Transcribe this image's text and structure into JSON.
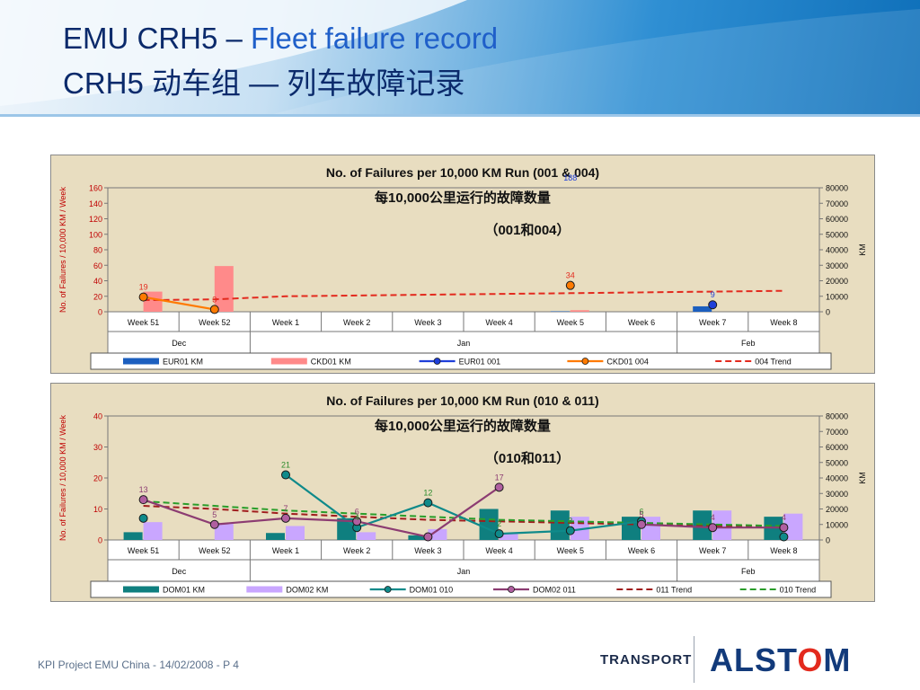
{
  "header": {
    "title_main": "EMU CRH5 –",
    "title_accent": "Fleet failure record",
    "title_cn": "CRH5 动车组 — 列车故障记录"
  },
  "colors": {
    "header_blue": "#0e6fb9",
    "title_dark": "#0b2a6b",
    "title_accent": "#1f5fc9",
    "panel_bg": "#e8ddc0",
    "alstom_blue": "#123a7a",
    "alstom_red": "#e32a1e"
  },
  "chart_data": [
    {
      "type": "bar",
      "title": "No. of Failures per 10,000 KM Run (001 & 004)",
      "subtitle_cn": "每10,000公里运行的故障数量",
      "subtitle_cn2": "（001和004）",
      "ylabel": "No. of Failures / 10,000 KM / Week",
      "y2label": "KM",
      "ylim": [
        0,
        160
      ],
      "yticks": [
        0,
        20,
        40,
        60,
        80,
        100,
        120,
        140,
        160
      ],
      "y2lim": [
        0,
        80000
      ],
      "y2ticks": [
        0,
        10000,
        20000,
        30000,
        40000,
        50000,
        60000,
        70000,
        80000
      ],
      "categories": [
        "Week 51",
        "Week 52",
        "Week 1",
        "Week 2",
        "Week 3",
        "Week 4",
        "Week 5",
        "Week 6",
        "Week 7",
        "Week 8"
      ],
      "months": [
        {
          "label": "Dec",
          "start": 0,
          "end": 2
        },
        {
          "label": "Jan",
          "start": 2,
          "end": 8
        },
        {
          "label": "Feb",
          "start": 8,
          "end": 10
        }
      ],
      "grid": false,
      "legend_position": "bottom",
      "bars": [
        {
          "name": "EUR01 KM",
          "color": "#1c5fbf",
          "values": [
            0,
            0,
            0,
            0,
            0,
            0,
            300,
            0,
            3500,
            0
          ]
        },
        {
          "name": "CKD01 KM",
          "color": "#ff8a8a",
          "values": [
            13000,
            29500,
            0,
            0,
            0,
            0,
            1000,
            0,
            0,
            0
          ]
        }
      ],
      "lines": [
        {
          "name": "EUR01 001",
          "color": "#1f3fd9",
          "marker": "#1f3fd9",
          "values": [
            null,
            null,
            null,
            null,
            null,
            null,
            188,
            null,
            9,
            null
          ]
        },
        {
          "name": "CKD01 004",
          "color": "#ff7a00",
          "marker": "#ff7a00",
          "values": [
            19,
            3,
            null,
            null,
            null,
            null,
            34,
            null,
            null,
            null
          ]
        }
      ],
      "trends": [
        {
          "name": "004 Trend",
          "color": "#e32a1e",
          "values": [
            15,
            16,
            20,
            21,
            22,
            23,
            24,
            25,
            26,
            27
          ]
        }
      ],
      "data_labels": [
        {
          "x": 0,
          "series": "CKD01 004",
          "text": "19",
          "color": "#e32a1e"
        },
        {
          "x": 1,
          "series": "CKD01 004",
          "text": "3",
          "color": "#e32a1e"
        },
        {
          "x": 6,
          "series": "CKD01 004",
          "text": "34",
          "color": "#e32a1e"
        },
        {
          "x": 6,
          "series": "EUR01 001",
          "text": "188",
          "color": "#1f3fd9"
        },
        {
          "x": 8,
          "series": "EUR01 001",
          "text": "9",
          "color": "#1f3fd9"
        }
      ]
    },
    {
      "type": "bar",
      "title": "No. of Failures per 10,000 KM Run (010 & 011)",
      "subtitle_cn": "每10,000公里运行的故障数量",
      "subtitle_cn2": "（010和011）",
      "ylabel": "No. of Failures / 10,000 KM / Week",
      "y2label": "KM",
      "ylim": [
        0,
        40
      ],
      "yticks": [
        0,
        10,
        20,
        30,
        40
      ],
      "y2lim": [
        0,
        80000
      ],
      "y2ticks": [
        0,
        10000,
        20000,
        30000,
        40000,
        50000,
        60000,
        70000,
        80000
      ],
      "categories": [
        "Week 51",
        "Week 52",
        "Week 1",
        "Week 2",
        "Week 3",
        "Week 4",
        "Week 5",
        "Week 6",
        "Week 7",
        "Week 8"
      ],
      "months": [
        {
          "label": "Dec",
          "start": 0,
          "end": 2
        },
        {
          "label": "Jan",
          "start": 2,
          "end": 8
        },
        {
          "label": "Feb",
          "start": 8,
          "end": 10
        }
      ],
      "grid": false,
      "legend_position": "bottom",
      "bars": [
        {
          "name": "DOM01 KM",
          "color": "#0f7f7f",
          "values": [
            5000,
            0,
            4500,
            14000,
            3000,
            20000,
            19000,
            15000,
            19000,
            15000
          ]
        },
        {
          "name": "DOM02 KM",
          "color": "#c9a6ff",
          "values": [
            11500,
            11000,
            9000,
            5000,
            7000,
            4000,
            15000,
            15000,
            19000,
            17000
          ]
        }
      ],
      "lines": [
        {
          "name": "DOM01 010",
          "color": "#0f8a8a",
          "marker": "#0f8a8a",
          "values": [
            7,
            null,
            21,
            4,
            12,
            2,
            3,
            6,
            null,
            1
          ]
        },
        {
          "name": "DOM02 011",
          "color": "#8c3c72",
          "marker": "#b05fa0",
          "values": [
            13,
            5,
            7,
            6,
            1,
            17,
            null,
            5,
            4,
            4
          ]
        }
      ],
      "trends": [
        {
          "name": "011 Trend",
          "color": "#a01d1d",
          "values": [
            11,
            10,
            8.5,
            7.5,
            6.5,
            6,
            5.5,
            5,
            4.5,
            4
          ]
        },
        {
          "name": "010 Trend",
          "color": "#2a9d2a",
          "values": [
            12.5,
            11,
            9.5,
            8.5,
            7.5,
            6.5,
            6,
            5.5,
            5,
            4.5
          ]
        }
      ],
      "data_labels": [
        {
          "x": 0,
          "series": "DOM02 011",
          "text": "13",
          "color": "#8c3c72"
        },
        {
          "x": 1,
          "series": "DOM02 011",
          "text": "5",
          "color": "#8c3c72"
        },
        {
          "x": 2,
          "series": "DOM01 010",
          "text": "21",
          "color": "#2a8a2a"
        },
        {
          "x": 2,
          "series": "DOM02 011",
          "text": "7",
          "color": "#8c3c72"
        },
        {
          "x": 3,
          "series": "DOM02 011",
          "text": "6",
          "color": "#8c3c72"
        },
        {
          "x": 3,
          "series": "DOM01 010",
          "text": "4",
          "color": "#2a8a2a"
        },
        {
          "x": 4,
          "series": "DOM01 010",
          "text": "12",
          "color": "#2a8a2a"
        },
        {
          "x": 5,
          "series": "DOM02 011",
          "text": "17",
          "color": "#8c3c72"
        },
        {
          "x": 5,
          "series": "DOM01 010",
          "text": "2",
          "color": "#2a8a2a"
        },
        {
          "x": 6,
          "series": "DOM01 010",
          "text": "3",
          "color": "#2a8a2a"
        },
        {
          "x": 7,
          "series": "DOM01 010",
          "text": "6",
          "color": "#2a8a2a"
        },
        {
          "x": 7,
          "series": "DOM02 011",
          "text": "5",
          "color": "#8c3c72"
        },
        {
          "x": 8,
          "series": "DOM02 011",
          "text": "4",
          "color": "#8c3c72"
        },
        {
          "x": 9,
          "series": "DOM02 011",
          "text": "4",
          "color": "#8c3c72"
        }
      ]
    }
  ],
  "footer": {
    "text": "KPI Project EMU China - 14/02/2008 - P 4",
    "transport": "TRANSPORT",
    "brand_left": "ALST",
    "brand_o": "O",
    "brand_right": "M"
  }
}
